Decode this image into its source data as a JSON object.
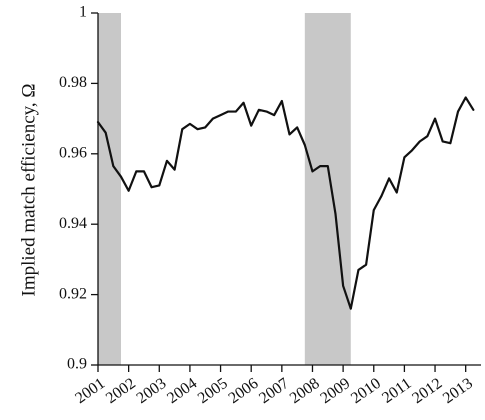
{
  "chart_data": {
    "type": "line",
    "title": "",
    "xlabel": "",
    "ylabel": "Implied match efficiency, Ω",
    "ylim": [
      0.9,
      1.0
    ],
    "xlim": [
      2001.0,
      2013.5
    ],
    "yticks": [
      0.9,
      0.92,
      0.94,
      0.96,
      0.98,
      1.0
    ],
    "ytick_labels": [
      "0.9",
      "0.92",
      "0.94",
      "0.96",
      "0.98",
      "1"
    ],
    "xticks": [
      2001,
      2002,
      2003,
      2004,
      2005,
      2006,
      2007,
      2008,
      2009,
      2010,
      2011,
      2012,
      2013
    ],
    "xtick_labels": [
      "2001",
      "2002",
      "2003",
      "2004",
      "2005",
      "2006",
      "2007",
      "2008",
      "2009",
      "2010",
      "2011",
      "2012",
      "2013"
    ],
    "grid": false,
    "legend": "none",
    "shaded_periods": [
      [
        2001.0,
        2001.75
      ],
      [
        2007.75,
        2009.25
      ]
    ],
    "colors": {
      "line": "#111111",
      "shade": "#c8c8c8",
      "axis": "#111111"
    },
    "series": [
      {
        "x": [
          2001.0,
          2001.25,
          2001.5,
          2001.75,
          2002.0,
          2002.25,
          2002.5,
          2002.75,
          2003.0,
          2003.25,
          2003.5,
          2003.75,
          2004.0,
          2004.25,
          2004.5,
          2004.75,
          2005.0,
          2005.25,
          2005.5,
          2005.75,
          2006.0,
          2006.25,
          2006.5,
          2006.75,
          2007.0,
          2007.25,
          2007.5,
          2007.75,
          2008.0,
          2008.25,
          2008.5,
          2008.75,
          2009.0,
          2009.25,
          2009.5,
          2009.75,
          2010.0,
          2010.25,
          2010.5,
          2010.75,
          2011.0,
          2011.25,
          2011.5,
          2011.75,
          2012.0,
          2012.25,
          2012.5,
          2012.75,
          2013.0,
          2013.25
        ],
        "values": [
          0.969,
          0.966,
          0.9565,
          0.9535,
          0.9495,
          0.955,
          0.955,
          0.9505,
          0.951,
          0.958,
          0.9555,
          0.967,
          0.9685,
          0.967,
          0.9675,
          0.97,
          0.971,
          0.972,
          0.972,
          0.9745,
          0.968,
          0.9725,
          0.972,
          0.971,
          0.975,
          0.9655,
          0.9675,
          0.9625,
          0.955,
          0.9565,
          0.9565,
          0.943,
          0.9225,
          0.916,
          0.927,
          0.9285,
          0.944,
          0.948,
          0.953,
          0.949,
          0.959,
          0.961,
          0.9635,
          0.965,
          0.97,
          0.9635,
          0.963,
          0.972,
          0.976,
          0.9725
        ]
      }
    ]
  }
}
